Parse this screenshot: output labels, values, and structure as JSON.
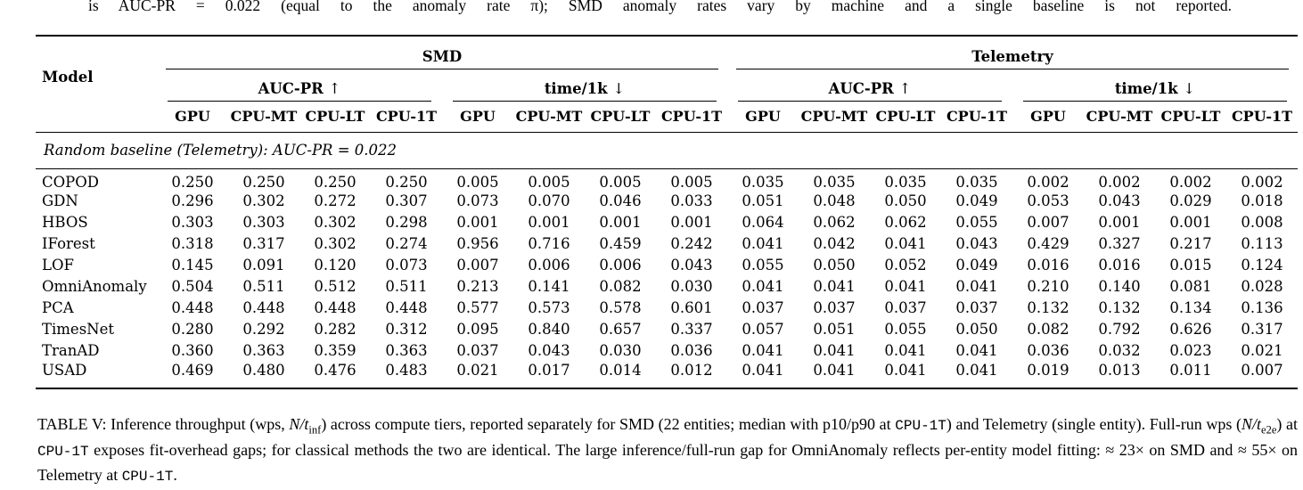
{
  "page": {
    "top_text": "is AUC-PR = 0.022 (equal to the anomaly rate π); SMD anomaly rates vary by machine and a single baseline is not reported."
  },
  "table": {
    "model_header": "Model",
    "groups": [
      {
        "label": "SMD",
        "subgroups": [
          {
            "label": "AUC-PR",
            "arrow": "↑"
          },
          {
            "label": "time/1k",
            "arrow": "↓"
          }
        ]
      },
      {
        "label": "Telemetry",
        "subgroups": [
          {
            "label": "AUC-PR",
            "arrow": "↑"
          },
          {
            "label": "time/1k",
            "arrow": "↓"
          }
        ]
      }
    ],
    "tier_labels": [
      "GPU",
      "CPU-MT",
      "CPU-LT",
      "CPU-1T"
    ],
    "baseline_note": "Random baseline (Telemetry): AUC-PR = 0.022",
    "rows": [
      {
        "model": "COPOD",
        "values": [
          "0.250",
          "0.250",
          "0.250",
          "0.250",
          "0.005",
          "0.005",
          "0.005",
          "0.005",
          "0.035",
          "0.035",
          "0.035",
          "0.035",
          "0.002",
          "0.002",
          "0.002",
          "0.002"
        ]
      },
      {
        "model": "GDN",
        "values": [
          "0.296",
          "0.302",
          "0.272",
          "0.307",
          "0.073",
          "0.070",
          "0.046",
          "0.033",
          "0.051",
          "0.048",
          "0.050",
          "0.049",
          "0.053",
          "0.043",
          "0.029",
          "0.018"
        ]
      },
      {
        "model": "HBOS",
        "values": [
          "0.303",
          "0.303",
          "0.302",
          "0.298",
          "0.001",
          "0.001",
          "0.001",
          "0.001",
          "0.064",
          "0.062",
          "0.062",
          "0.055",
          "0.007",
          "0.001",
          "0.001",
          "0.008"
        ]
      },
      {
        "model": "IForest",
        "values": [
          "0.318",
          "0.317",
          "0.302",
          "0.274",
          "0.956",
          "0.716",
          "0.459",
          "0.242",
          "0.041",
          "0.042",
          "0.041",
          "0.043",
          "0.429",
          "0.327",
          "0.217",
          "0.113"
        ]
      },
      {
        "model": "LOF",
        "values": [
          "0.145",
          "0.091",
          "0.120",
          "0.073",
          "0.007",
          "0.006",
          "0.006",
          "0.043",
          "0.055",
          "0.050",
          "0.052",
          "0.049",
          "0.016",
          "0.016",
          "0.015",
          "0.124"
        ]
      },
      {
        "model": "OmniAnomaly",
        "values": [
          "0.504",
          "0.511",
          "0.512",
          "0.511",
          "0.213",
          "0.141",
          "0.082",
          "0.030",
          "0.041",
          "0.041",
          "0.041",
          "0.041",
          "0.210",
          "0.140",
          "0.081",
          "0.028"
        ]
      },
      {
        "model": "PCA",
        "values": [
          "0.448",
          "0.448",
          "0.448",
          "0.448",
          "0.577",
          "0.573",
          "0.578",
          "0.601",
          "0.037",
          "0.037",
          "0.037",
          "0.037",
          "0.132",
          "0.132",
          "0.134",
          "0.136"
        ]
      },
      {
        "model": "TimesNet",
        "values": [
          "0.280",
          "0.292",
          "0.282",
          "0.312",
          "0.095",
          "0.840",
          "0.657",
          "0.337",
          "0.057",
          "0.051",
          "0.055",
          "0.050",
          "0.082",
          "0.792",
          "0.626",
          "0.317"
        ]
      },
      {
        "model": "TranAD",
        "values": [
          "0.360",
          "0.363",
          "0.359",
          "0.363",
          "0.037",
          "0.043",
          "0.030",
          "0.036",
          "0.041",
          "0.041",
          "0.041",
          "0.041",
          "0.036",
          "0.032",
          "0.023",
          "0.021"
        ]
      },
      {
        "model": "USAD",
        "values": [
          "0.469",
          "0.480",
          "0.476",
          "0.483",
          "0.021",
          "0.017",
          "0.014",
          "0.012",
          "0.041",
          "0.041",
          "0.041",
          "0.041",
          "0.019",
          "0.013",
          "0.011",
          "0.007"
        ]
      }
    ]
  },
  "caption": {
    "segments": [
      {
        "t": "TABLE V: Inference throughput (wps, ",
        "s": "n"
      },
      {
        "t": "N/t",
        "s": "i"
      },
      {
        "t": "inf",
        "s": "sub"
      },
      {
        "t": ") across compute tiers, reported separately for SMD (22 entities; median with p10/p90 at ",
        "s": "n"
      },
      {
        "t": "CPU-1T",
        "s": "m"
      },
      {
        "t": ") and Telemetry (single entity). Full-run wps (",
        "s": "n"
      },
      {
        "t": "N/t",
        "s": "i"
      },
      {
        "t": "e2e",
        "s": "sub"
      },
      {
        "t": ") at ",
        "s": "n"
      },
      {
        "t": "CPU-1T",
        "s": "m"
      },
      {
        "t": " exposes fit-overhead gaps; for classical methods the two are identical. The large inference/full-run gap for OmniAnomaly reflects per-entity model fitting: ≈ 23× on SMD and ≈ 55× on Telemetry at ",
        "s": "n"
      },
      {
        "t": "CPU-1T",
        "s": "m"
      },
      {
        "t": ".",
        "s": "n"
      }
    ]
  }
}
